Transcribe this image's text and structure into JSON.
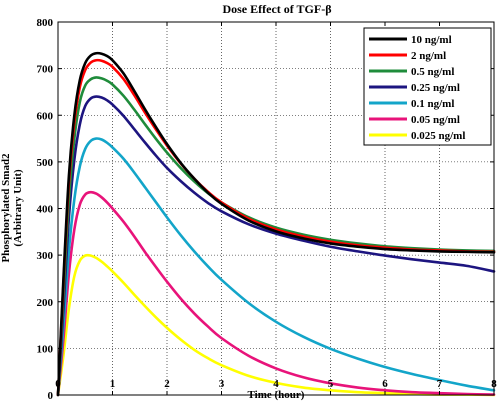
{
  "chart_data": {
    "type": "line",
    "title": "Dose Effect of TGF-β",
    "xlabel": "Time (hour)",
    "ylabel_line1": "Phosphorylated Smad2",
    "ylabel_line2": "(Arbitrary Unit)",
    "xlim": [
      0,
      8
    ],
    "ylim": [
      0,
      800
    ],
    "x_ticks": [
      0,
      1,
      2,
      3,
      4,
      5,
      6,
      7,
      8
    ],
    "y_ticks": [
      0,
      100,
      200,
      300,
      400,
      500,
      600,
      700,
      800
    ],
    "grid": true,
    "legend_position": "top-right",
    "x": [
      0,
      0.1,
      0.2,
      0.3,
      0.4,
      0.5,
      0.6,
      0.7,
      0.8,
      0.9,
      1.0,
      1.2,
      1.4,
      1.6,
      1.8,
      2.0,
      2.25,
      2.5,
      2.75,
      3.0,
      3.5,
      4.0,
      4.5,
      5.0,
      5.5,
      6.0,
      6.5,
      7.0,
      7.5,
      8.0
    ],
    "series": [
      {
        "name": "10 ng/ml",
        "color": "#000000",
        "values": [
          0,
          250,
          470,
          600,
          675,
          712,
          728,
          733,
          732,
          727,
          718,
          690,
          652,
          612,
          574,
          538,
          498,
          464,
          434,
          410,
          374,
          351,
          336,
          325,
          318,
          313,
          310,
          308,
          307,
          306
        ]
      },
      {
        "name": "2 ng/ml",
        "color": "#ff0000",
        "values": [
          0,
          240,
          455,
          585,
          660,
          697,
          713,
          718,
          717,
          712,
          704,
          678,
          643,
          605,
          569,
          535,
          497,
          464,
          436,
          413,
          378,
          355,
          340,
          329,
          321,
          316,
          312,
          310,
          308,
          307
        ]
      },
      {
        "name": "0.5 ng/ml",
        "color": "#1f8c3b",
        "values": [
          0,
          215,
          420,
          550,
          628,
          664,
          677,
          681,
          679,
          674,
          666,
          642,
          612,
          580,
          549,
          520,
          487,
          458,
          433,
          413,
          381,
          359,
          344,
          333,
          325,
          319,
          315,
          312,
          310,
          309
        ]
      },
      {
        "name": "0.25 ng/ml",
        "color": "#1d1580",
        "values": [
          0,
          185,
          380,
          505,
          580,
          620,
          636,
          640,
          638,
          632,
          623,
          599,
          570,
          541,
          513,
          487,
          459,
          434,
          412,
          394,
          366,
          346,
          331,
          318,
          308,
          299,
          291,
          284,
          277,
          265
        ]
      },
      {
        "name": "0.1 ng/ml",
        "color": "#13a5c9",
        "values": [
          0,
          150,
          310,
          420,
          490,
          528,
          545,
          550,
          548,
          541,
          531,
          507,
          477,
          445,
          413,
          381,
          343,
          308,
          276,
          247,
          197,
          157,
          125,
          99,
          78,
          60,
          45,
          32,
          20,
          10
        ]
      },
      {
        "name": "0.05 ng/ml",
        "color": "#e8137a",
        "values": [
          0,
          120,
          260,
          355,
          408,
          430,
          435,
          432,
          424,
          413,
          400,
          372,
          340,
          306,
          274,
          243,
          207,
          175,
          147,
          122,
          84,
          57,
          38,
          25,
          16,
          10,
          6,
          4,
          2,
          1
        ]
      },
      {
        "name": "0.025 ng/ml",
        "color": "#ffff00",
        "values": [
          0,
          85,
          185,
          255,
          288,
          299,
          299,
          294,
          286,
          276,
          265,
          241,
          215,
          190,
          166,
          144,
          119,
          97,
          79,
          64,
          41,
          26,
          16,
          10,
          6,
          4,
          2,
          1,
          1,
          0
        ]
      }
    ]
  }
}
